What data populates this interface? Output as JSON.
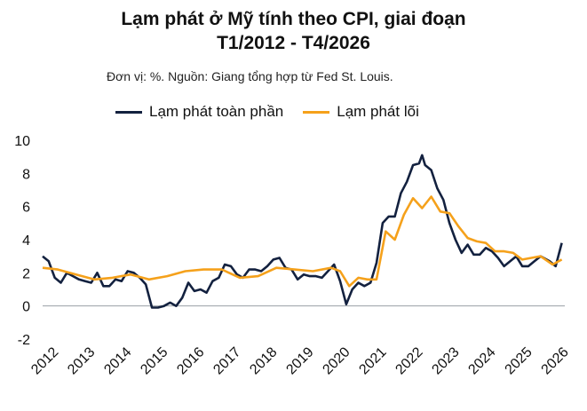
{
  "title_line1": "Lạm phát ở Mỹ tính theo CPI, giai đoạn",
  "title_line2": "T1/2012 - T4/2026",
  "subtitle": "Đơn vị: %. Nguồn: Giang tổng hợp từ Fed St. Louis.",
  "chart_data": {
    "type": "line",
    "title": "Lạm phát ở Mỹ tính theo CPI, giai đoạn T1/2012 - T4/2026",
    "xlabel": "",
    "ylabel": "",
    "ylim": [
      -2,
      10
    ],
    "yticks": [
      -2,
      0,
      2,
      4,
      6,
      8,
      10
    ],
    "xticks": [
      "2012",
      "2013",
      "2014",
      "2015",
      "2016",
      "2017",
      "2018",
      "2019",
      "2020",
      "2021",
      "2022",
      "2023",
      "2024",
      "2025",
      "2026"
    ],
    "grid": false,
    "legend_position": "top",
    "series": [
      {
        "name": "Lạm phát toàn phần",
        "color": "#13213f",
        "points": [
          [
            "2012-01",
            3.0
          ],
          [
            "2012-03",
            2.7
          ],
          [
            "2012-05",
            1.7
          ],
          [
            "2012-07",
            1.4
          ],
          [
            "2012-09",
            2.0
          ],
          [
            "2012-11",
            1.8
          ],
          [
            "2013-01",
            1.6
          ],
          [
            "2013-03",
            1.5
          ],
          [
            "2013-05",
            1.4
          ],
          [
            "2013-07",
            2.0
          ],
          [
            "2013-09",
            1.2
          ],
          [
            "2013-11",
            1.2
          ],
          [
            "2014-01",
            1.6
          ],
          [
            "2014-03",
            1.5
          ],
          [
            "2014-05",
            2.1
          ],
          [
            "2014-07",
            2.0
          ],
          [
            "2014-09",
            1.7
          ],
          [
            "2014-11",
            1.3
          ],
          [
            "2015-01",
            -0.1
          ],
          [
            "2015-03",
            -0.1
          ],
          [
            "2015-05",
            0.0
          ],
          [
            "2015-07",
            0.2
          ],
          [
            "2015-09",
            0.0
          ],
          [
            "2015-11",
            0.5
          ],
          [
            "2016-01",
            1.4
          ],
          [
            "2016-03",
            0.9
          ],
          [
            "2016-05",
            1.0
          ],
          [
            "2016-07",
            0.8
          ],
          [
            "2016-09",
            1.5
          ],
          [
            "2016-11",
            1.7
          ],
          [
            "2017-01",
            2.5
          ],
          [
            "2017-03",
            2.4
          ],
          [
            "2017-05",
            1.9
          ],
          [
            "2017-07",
            1.7
          ],
          [
            "2017-09",
            2.2
          ],
          [
            "2017-11",
            2.2
          ],
          [
            "2018-01",
            2.1
          ],
          [
            "2018-03",
            2.4
          ],
          [
            "2018-05",
            2.8
          ],
          [
            "2018-07",
            2.9
          ],
          [
            "2018-09",
            2.3
          ],
          [
            "2018-11",
            2.2
          ],
          [
            "2019-01",
            1.6
          ],
          [
            "2019-03",
            1.9
          ],
          [
            "2019-05",
            1.8
          ],
          [
            "2019-07",
            1.8
          ],
          [
            "2019-09",
            1.7
          ],
          [
            "2019-11",
            2.1
          ],
          [
            "2020-01",
            2.5
          ],
          [
            "2020-03",
            1.5
          ],
          [
            "2020-05",
            0.1
          ],
          [
            "2020-07",
            1.0
          ],
          [
            "2020-09",
            1.4
          ],
          [
            "2020-11",
            1.2
          ],
          [
            "2021-01",
            1.4
          ],
          [
            "2021-03",
            2.6
          ],
          [
            "2021-05",
            5.0
          ],
          [
            "2021-07",
            5.4
          ],
          [
            "2021-09",
            5.4
          ],
          [
            "2021-11",
            6.8
          ],
          [
            "2022-01",
            7.5
          ],
          [
            "2022-03",
            8.5
          ],
          [
            "2022-05",
            8.6
          ],
          [
            "2022-06",
            9.1
          ],
          [
            "2022-07",
            8.5
          ],
          [
            "2022-09",
            8.2
          ],
          [
            "2022-11",
            7.1
          ],
          [
            "2023-01",
            6.4
          ],
          [
            "2023-03",
            5.0
          ],
          [
            "2023-05",
            4.0
          ],
          [
            "2023-07",
            3.2
          ],
          [
            "2023-09",
            3.7
          ],
          [
            "2023-11",
            3.1
          ],
          [
            "2024-01",
            3.1
          ],
          [
            "2024-03",
            3.5
          ],
          [
            "2024-05",
            3.3
          ],
          [
            "2024-07",
            2.9
          ],
          [
            "2024-09",
            2.4
          ],
          [
            "2024-11",
            2.7
          ],
          [
            "2025-01",
            3.0
          ],
          [
            "2025-03",
            2.4
          ],
          [
            "2025-05",
            2.4
          ],
          [
            "2025-07",
            2.7
          ],
          [
            "2025-09",
            3.0
          ],
          [
            "2025-12",
            2.7
          ],
          [
            "2026-02",
            2.4
          ],
          [
            "2026-04",
            3.8
          ]
        ]
      },
      {
        "name": "Lạm phát lõi",
        "color": "#f5a11b",
        "points": [
          [
            "2012-01",
            2.3
          ],
          [
            "2012-06",
            2.2
          ],
          [
            "2012-12",
            1.9
          ],
          [
            "2013-06",
            1.6
          ],
          [
            "2013-12",
            1.7
          ],
          [
            "2014-06",
            1.9
          ],
          [
            "2014-12",
            1.6
          ],
          [
            "2015-06",
            1.8
          ],
          [
            "2015-12",
            2.1
          ],
          [
            "2016-06",
            2.2
          ],
          [
            "2016-12",
            2.2
          ],
          [
            "2017-06",
            1.7
          ],
          [
            "2017-12",
            1.8
          ],
          [
            "2018-06",
            2.3
          ],
          [
            "2018-12",
            2.2
          ],
          [
            "2019-06",
            2.1
          ],
          [
            "2019-12",
            2.3
          ],
          [
            "2020-03",
            2.1
          ],
          [
            "2020-06",
            1.2
          ],
          [
            "2020-09",
            1.7
          ],
          [
            "2020-12",
            1.6
          ],
          [
            "2021-03",
            1.6
          ],
          [
            "2021-06",
            4.5
          ],
          [
            "2021-09",
            4.0
          ],
          [
            "2021-12",
            5.5
          ],
          [
            "2022-03",
            6.5
          ],
          [
            "2022-06",
            5.9
          ],
          [
            "2022-09",
            6.6
          ],
          [
            "2022-12",
            5.7
          ],
          [
            "2023-03",
            5.6
          ],
          [
            "2023-06",
            4.8
          ],
          [
            "2023-09",
            4.1
          ],
          [
            "2023-12",
            3.9
          ],
          [
            "2024-03",
            3.8
          ],
          [
            "2024-06",
            3.3
          ],
          [
            "2024-09",
            3.3
          ],
          [
            "2024-12",
            3.2
          ],
          [
            "2025-03",
            2.8
          ],
          [
            "2025-06",
            2.9
          ],
          [
            "2025-09",
            3.0
          ],
          [
            "2026-01",
            2.5
          ],
          [
            "2026-04",
            2.8
          ]
        ]
      }
    ]
  }
}
